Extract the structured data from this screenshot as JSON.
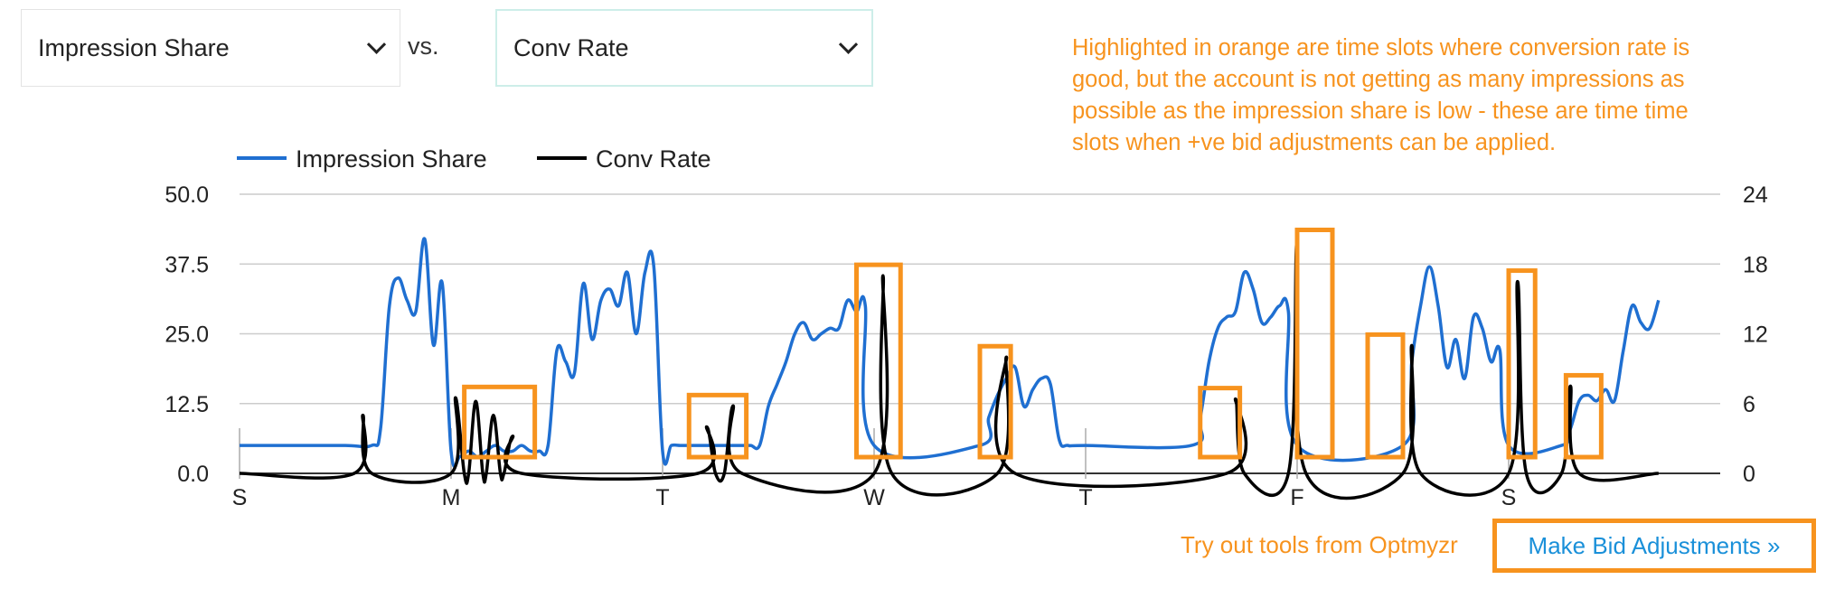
{
  "controls": {
    "metric_1": "Impression Share",
    "vs_label": "vs.",
    "metric_2": "Conv Rate"
  },
  "note": "Highlighted in orange are time slots where conversion rate is good, but the account is not getting as many impressions as possible as the impression share is low - these are time time slots when +ve bid adjustments can be applied.",
  "footer": {
    "tagline": "Try out tools from Optmyzr",
    "cta_label": "Make Bid Adjustments »"
  },
  "colors": {
    "impression_share": "#1f6fd1",
    "conv_rate": "#000000",
    "highlight": "#f7931e",
    "grid": "#cccccc"
  },
  "chart_data": {
    "type": "line",
    "x_unit": "hour of week (0 = Sunday 00:00, 168 slots)",
    "x_ticks": [
      {
        "label": "S",
        "hour": 0
      },
      {
        "label": "M",
        "hour": 24
      },
      {
        "label": "T",
        "hour": 48
      },
      {
        "label": "W",
        "hour": 72
      },
      {
        "label": "T",
        "hour": 96
      },
      {
        "label": "F",
        "hour": 120
      },
      {
        "label": "S",
        "hour": 144
      }
    ],
    "y_left": {
      "ticks": [
        "0.0",
        "12.5",
        "25.0",
        "37.5",
        "50.0"
      ],
      "min": 0,
      "max": 50
    },
    "y_right": {
      "ticks": [
        "0",
        "6",
        "12",
        "18",
        "24"
      ],
      "min": 0,
      "max": 24
    },
    "legend_position": "top-left",
    "grid": true,
    "series": [
      {
        "name": "Impression Share",
        "axis": "left",
        "points": [
          [
            0,
            5
          ],
          [
            6,
            5
          ],
          [
            12,
            5
          ],
          [
            15,
            5
          ],
          [
            16,
            8
          ],
          [
            17,
            30
          ],
          [
            18,
            35
          ],
          [
            19,
            31
          ],
          [
            20,
            29
          ],
          [
            21,
            42
          ],
          [
            22,
            23
          ],
          [
            23,
            34
          ],
          [
            24,
            4
          ],
          [
            25,
            3
          ],
          [
            26,
            4
          ],
          [
            27,
            3
          ],
          [
            28,
            4
          ],
          [
            29,
            5
          ],
          [
            30,
            4
          ],
          [
            31,
            4
          ],
          [
            32,
            5
          ],
          [
            33,
            4
          ],
          [
            34,
            4
          ],
          [
            35,
            5
          ],
          [
            36,
            22
          ],
          [
            37,
            20
          ],
          [
            38,
            18
          ],
          [
            39,
            34
          ],
          [
            40,
            24
          ],
          [
            41,
            31
          ],
          [
            42,
            33
          ],
          [
            43,
            30
          ],
          [
            44,
            36
          ],
          [
            45,
            25
          ],
          [
            46,
            36
          ],
          [
            47,
            37
          ],
          [
            48,
            4
          ],
          [
            49,
            5
          ],
          [
            50,
            5
          ],
          [
            51,
            5
          ],
          [
            52,
            5
          ],
          [
            53,
            5
          ],
          [
            54,
            5
          ],
          [
            55,
            5
          ],
          [
            56,
            5
          ],
          [
            57,
            5
          ],
          [
            58,
            5
          ],
          [
            59,
            5
          ],
          [
            60,
            12
          ],
          [
            61,
            16
          ],
          [
            62,
            20
          ],
          [
            63,
            25
          ],
          [
            64,
            27
          ],
          [
            65,
            24
          ],
          [
            66,
            25
          ],
          [
            67,
            26
          ],
          [
            68,
            26
          ],
          [
            69,
            31
          ],
          [
            70,
            29
          ],
          [
            71,
            30
          ],
          [
            72,
            5
          ],
          [
            84,
            5
          ],
          [
            85,
            10
          ],
          [
            86,
            14
          ],
          [
            87,
            17
          ],
          [
            88,
            19
          ],
          [
            89,
            12
          ],
          [
            90,
            15
          ],
          [
            91,
            17
          ],
          [
            92,
            16
          ],
          [
            93,
            6
          ],
          [
            94,
            5
          ],
          [
            96,
            5
          ],
          [
            108,
            5
          ],
          [
            109,
            10
          ],
          [
            110,
            20
          ],
          [
            111,
            26
          ],
          [
            112,
            28
          ],
          [
            113,
            29
          ],
          [
            114,
            36
          ],
          [
            115,
            33
          ],
          [
            116,
            27
          ],
          [
            117,
            28
          ],
          [
            118,
            30
          ],
          [
            119,
            29
          ],
          [
            120,
            5
          ],
          [
            132,
            5
          ],
          [
            133,
            20
          ],
          [
            134,
            30
          ],
          [
            135,
            37
          ],
          [
            136,
            30
          ],
          [
            137,
            19
          ],
          [
            138,
            24
          ],
          [
            139,
            17
          ],
          [
            140,
            28
          ],
          [
            141,
            26
          ],
          [
            142,
            20
          ],
          [
            143,
            22
          ],
          [
            144,
            5
          ],
          [
            150,
            5
          ],
          [
            151,
            8
          ],
          [
            152,
            13
          ],
          [
            153,
            14
          ],
          [
            154,
            13
          ],
          [
            155,
            15
          ],
          [
            156,
            13
          ],
          [
            157,
            22
          ],
          [
            158,
            30
          ],
          [
            159,
            27
          ],
          [
            160,
            26
          ],
          [
            161,
            31
          ]
        ]
      },
      {
        "name": "Conv Rate",
        "axis": "right",
        "points": [
          [
            0,
            0
          ],
          [
            13,
            0
          ],
          [
            14,
            5
          ],
          [
            15,
            0
          ],
          [
            24,
            0
          ],
          [
            24.5,
            6.5
          ],
          [
            25.5,
            0
          ],
          [
            26,
            0
          ],
          [
            26.8,
            6.2
          ],
          [
            27.6,
            0
          ],
          [
            28,
            0
          ],
          [
            28.8,
            5
          ],
          [
            29.6,
            0
          ],
          [
            30,
            0
          ],
          [
            31,
            3.2
          ],
          [
            32,
            0
          ],
          [
            52,
            0
          ],
          [
            53,
            4
          ],
          [
            54,
            0
          ],
          [
            55,
            0
          ],
          [
            56,
            5.8
          ],
          [
            57,
            0
          ],
          [
            72,
            0
          ],
          [
            73,
            17
          ],
          [
            74,
            0
          ],
          [
            86,
            0
          ],
          [
            87,
            10
          ],
          [
            88,
            0
          ],
          [
            112,
            0
          ],
          [
            113,
            6.4
          ],
          [
            114,
            0
          ],
          [
            119,
            0
          ],
          [
            120,
            20
          ],
          [
            121,
            0
          ],
          [
            132,
            0
          ],
          [
            133,
            11
          ],
          [
            134,
            0
          ],
          [
            144,
            0
          ],
          [
            145,
            16.5
          ],
          [
            146,
            0
          ],
          [
            150,
            0
          ],
          [
            151,
            7.5
          ],
          [
            152,
            0
          ],
          [
            161,
            0
          ]
        ]
      }
    ],
    "highlighted_slots_hours": [
      [
        25.5,
        33.5
      ],
      [
        51,
        57.5
      ],
      [
        70,
        75
      ],
      [
        84,
        87.5
      ],
      [
        109,
        113.5
      ],
      [
        120,
        124
      ],
      [
        128,
        132
      ],
      [
        144,
        147
      ],
      [
        150.5,
        154.5
      ]
    ]
  }
}
